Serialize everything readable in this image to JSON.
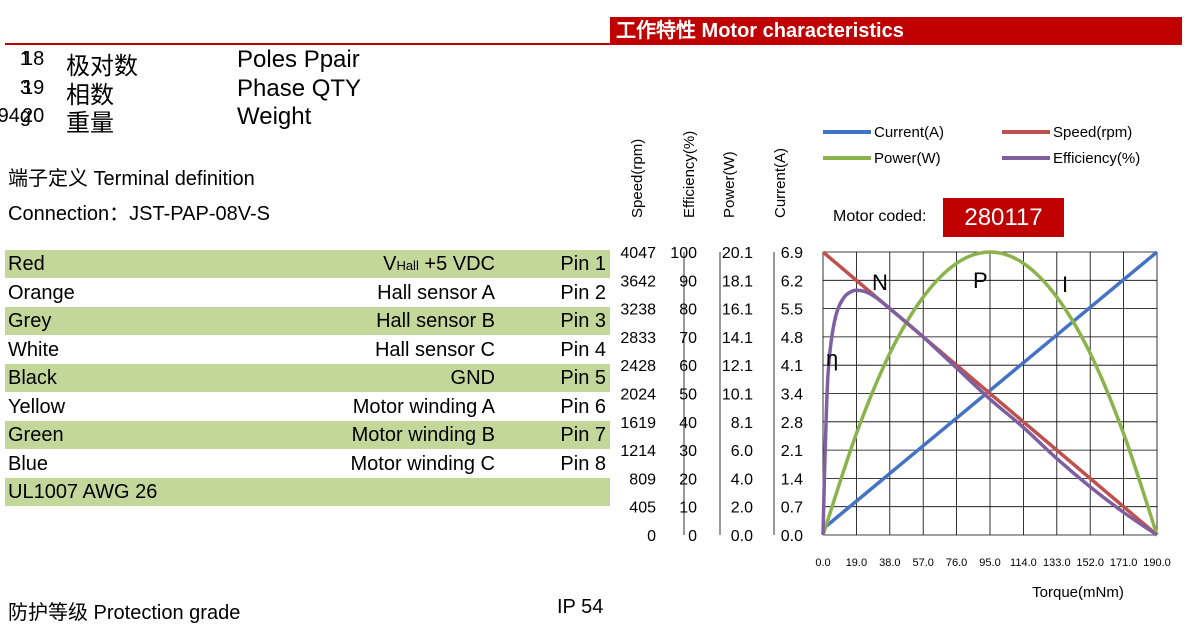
{
  "header": {
    "title": "工作特性 Motor characteristics"
  },
  "specs": [
    {
      "no": "18",
      "cn": "极对数",
      "en": "Poles Ppair",
      "value": "1"
    },
    {
      "no": "19",
      "cn": "相数",
      "en": "Phase QTY",
      "value": "3"
    },
    {
      "no": "20",
      "cn": "重量",
      "en": "Weight",
      "value": "194g"
    }
  ],
  "terminal": {
    "title": "端子定义 Terminal definition",
    "connection": "Connection：JST-PAP-08V-S"
  },
  "pins": [
    {
      "color": "Red",
      "func_pre": "V",
      "func_sub": "Hall",
      "func": " +5 VDC",
      "pin": "Pin 1",
      "shade": true
    },
    {
      "color": "Orange",
      "func": "Hall sensor A",
      "pin": "Pin 2",
      "shade": false
    },
    {
      "color": "Grey",
      "func": "Hall sensor B",
      "pin": "Pin 3",
      "shade": true
    },
    {
      "color": "White",
      "func": "Hall sensor C",
      "pin": "Pin 4",
      "shade": false
    },
    {
      "color": "Black",
      "func": "GND",
      "pin": "Pin 5",
      "shade": true
    },
    {
      "color": "Yellow",
      "func": "Motor winding A",
      "pin": "Pin 6",
      "shade": false
    },
    {
      "color": "Green",
      "func": "Motor winding B",
      "pin": "Pin 7",
      "shade": true
    },
    {
      "color": "Blue",
      "func": "Motor winding C",
      "pin": "Pin 8",
      "shade": false
    }
  ],
  "wire": "UL1007 AWG 26",
  "protection": {
    "label": "防护等级 Protection grade",
    "value": "IP 54"
  },
  "motor_code": {
    "label": "Motor coded:",
    "value": "280117"
  },
  "chart_data": {
    "type": "line",
    "xlabel": "Torque(mNm)",
    "x_ticks": [
      "0.0",
      "19.0",
      "38.0",
      "57.0",
      "76.0",
      "95.0",
      "114.0",
      "133.0",
      "152.0",
      "171.0",
      "190.0"
    ],
    "xlim": [
      0,
      190
    ],
    "axes": [
      {
        "label": "Speed(rpm)",
        "ticks": [
          "4047",
          "3642",
          "3238",
          "2833",
          "2428",
          "2024",
          "1619",
          "1214",
          "809",
          "405",
          "0"
        ],
        "max": 4047
      },
      {
        "label": "Efficiency(%)",
        "ticks": [
          "100",
          "90",
          "80",
          "70",
          "60",
          "50",
          "40",
          "30",
          "20",
          "10",
          "0"
        ],
        "max": 100
      },
      {
        "label": "Power(W)",
        "ticks": [
          "20.1",
          "18.1",
          "16.1",
          "14.1",
          "12.1",
          "10.1",
          "8.1",
          "6.0",
          "4.0",
          "2.0",
          "0.0"
        ],
        "max": 20.1
      },
      {
        "label": "Current(A)",
        "ticks": [
          "6.9",
          "6.2",
          "5.5",
          "4.8",
          "4.1",
          "3.4",
          "2.8",
          "2.1",
          "1.4",
          "0.7",
          "0.0"
        ],
        "max": 6.9
      }
    ],
    "series": [
      {
        "name": "Current(A)",
        "color": "#4472c4",
        "x": [
          0,
          190
        ],
        "y": [
          0.15,
          6.9
        ]
      },
      {
        "name": "Speed(rpm)",
        "color": "#c0504d",
        "x": [
          0,
          190
        ],
        "y": [
          4047,
          0
        ]
      },
      {
        "name": "Power(W)",
        "color": "#8bb34b",
        "x": [
          0,
          19,
          38,
          57,
          76,
          95,
          114,
          133,
          152,
          171,
          190
        ],
        "y": [
          0,
          7.2,
          12.9,
          16.9,
          19.3,
          20.1,
          19.3,
          16.9,
          12.9,
          7.2,
          0
        ]
      },
      {
        "name": "Efficiency(%)",
        "color": "#7f5fa0",
        "x": [
          0,
          1,
          2,
          3,
          5,
          8,
          12,
          16,
          19,
          24,
          30,
          40,
          57,
          76,
          95,
          114,
          133,
          152,
          171,
          190
        ],
        "y": [
          0,
          25,
          45,
          58,
          70,
          79,
          84,
          86,
          86.5,
          86,
          84,
          79,
          70,
          59,
          48,
          38,
          27,
          17,
          8,
          0
        ]
      }
    ],
    "annotations": [
      "N",
      "P",
      "I",
      "η"
    ],
    "grid": true,
    "legend": "top-right"
  }
}
